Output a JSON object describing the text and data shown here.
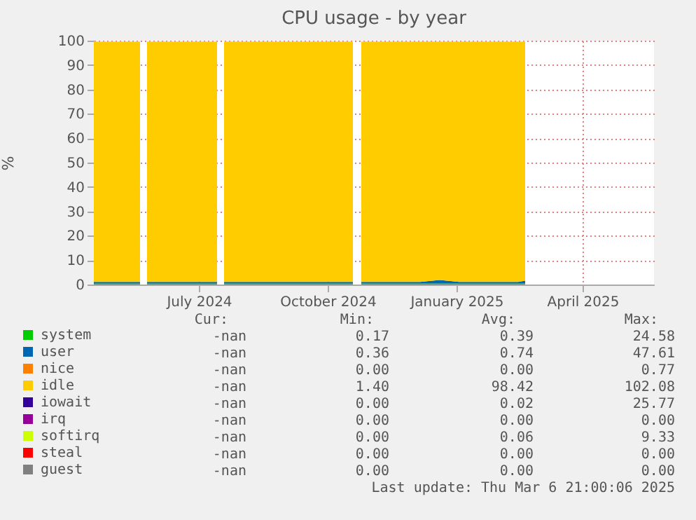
{
  "chart_data": {
    "type": "area",
    "stacked": true,
    "title": "CPU usage - by year",
    "ylabel": "%",
    "x": [
      "2024-05-02",
      "2024-05-16",
      "2024-05-30",
      "2024-06-04",
      "2024-06-06",
      "2024-06-09",
      "2024-06-23",
      "2024-07-07",
      "2024-07-21",
      "2024-07-29",
      "2024-07-31",
      "2024-08-03",
      "2024-08-17",
      "2024-08-31",
      "2024-09-14",
      "2024-09-28",
      "2024-10-12",
      "2024-10-26",
      "2024-11-03",
      "2024-11-06",
      "2024-11-09",
      "2024-11-23",
      "2024-12-07",
      "2024-12-21",
      "2025-01-04",
      "2025-01-18",
      "2025-02-01",
      "2025-02-15",
      "2025-03-01",
      "2025-03-06"
    ],
    "series": [
      {
        "name": "system",
        "color": "#00cc00",
        "values": [
          0.4,
          0.4,
          0.4,
          0.4,
          null,
          0.4,
          0.4,
          0.4,
          0.4,
          0.4,
          null,
          0.4,
          0.4,
          0.4,
          0.4,
          0.4,
          0.4,
          0.4,
          0.4,
          null,
          0.4,
          0.4,
          0.4,
          0.4,
          0.4,
          0.4,
          0.4,
          0.4,
          0.4,
          0.4
        ]
      },
      {
        "name": "user",
        "color": "#0066b3",
        "values": [
          0.7,
          0.7,
          0.7,
          0.7,
          null,
          0.7,
          0.7,
          0.7,
          0.7,
          0.7,
          null,
          0.7,
          0.7,
          0.7,
          0.7,
          0.7,
          0.7,
          0.7,
          0.7,
          null,
          0.7,
          0.7,
          0.7,
          0.7,
          1.5,
          0.7,
          0.7,
          0.7,
          0.7,
          1.2
        ]
      },
      {
        "name": "nice",
        "color": "#ff8000",
        "values": [
          null,
          null,
          null,
          null,
          null,
          null,
          null,
          null,
          null,
          null,
          null,
          null,
          null,
          null,
          null,
          null,
          null,
          null,
          null,
          null,
          null,
          null,
          null,
          null,
          null,
          null,
          null,
          null,
          null,
          null
        ]
      },
      {
        "name": "idle",
        "color": "#ffcc00",
        "values": [
          98.5,
          98.5,
          98.5,
          98.5,
          null,
          98.5,
          98.5,
          98.5,
          98.5,
          98.5,
          null,
          98.5,
          98.5,
          98.5,
          98.5,
          98.5,
          98.5,
          98.5,
          98.5,
          null,
          98.5,
          98.5,
          98.5,
          98.5,
          97.7,
          98.5,
          98.5,
          98.5,
          98.5,
          98.0
        ]
      },
      {
        "name": "iowait",
        "color": "#330099",
        "values": [
          null,
          null,
          null,
          null,
          null,
          null,
          null,
          null,
          null,
          null,
          null,
          null,
          null,
          null,
          null,
          null,
          null,
          null,
          null,
          null,
          null,
          null,
          null,
          null,
          null,
          null,
          null,
          null,
          null,
          null
        ]
      },
      {
        "name": "irq",
        "color": "#990099",
        "values": [
          null,
          null,
          null,
          null,
          null,
          null,
          null,
          null,
          null,
          null,
          null,
          null,
          null,
          null,
          null,
          null,
          null,
          null,
          null,
          null,
          null,
          null,
          null,
          null,
          null,
          null,
          null,
          null,
          null,
          null
        ]
      },
      {
        "name": "softirq",
        "color": "#ccff00",
        "values": [
          0.1,
          0.1,
          0.1,
          0.1,
          null,
          0.1,
          0.1,
          0.1,
          0.1,
          0.1,
          null,
          0.1,
          0.1,
          0.1,
          0.1,
          0.1,
          0.1,
          0.1,
          0.1,
          null,
          0.1,
          0.1,
          0.1,
          0.1,
          0.1,
          0.1,
          0.1,
          0.1,
          0.1,
          0.1
        ]
      },
      {
        "name": "steal",
        "color": "#ff0000",
        "values": [
          null,
          null,
          null,
          null,
          null,
          null,
          null,
          null,
          null,
          null,
          null,
          null,
          null,
          null,
          null,
          null,
          null,
          null,
          null,
          null,
          null,
          null,
          null,
          null,
          null,
          null,
          null,
          null,
          null,
          null
        ]
      },
      {
        "name": "guest",
        "color": "#808080",
        "values": [
          null,
          null,
          null,
          null,
          null,
          null,
          null,
          null,
          null,
          null,
          null,
          null,
          null,
          null,
          null,
          null,
          null,
          null,
          null,
          null,
          null,
          null,
          null,
          null,
          null,
          null,
          null,
          null,
          null,
          null
        ]
      }
    ],
    "xlim": [
      "2024-05-02",
      "2025-06-06"
    ],
    "xticks": [
      {
        "value": "2024-07-16",
        "label": "July 2024"
      },
      {
        "value": "2024-10-16",
        "label": "October 2024"
      },
      {
        "value": "2025-01-16",
        "label": "January 2025"
      },
      {
        "value": "2025-04-16",
        "label": "April 2025"
      }
    ],
    "ylim": [
      0,
      100
    ],
    "yticks": [
      0,
      10,
      20,
      30,
      40,
      50,
      60,
      70,
      80,
      90,
      100
    ],
    "grid": true,
    "legend": "bottom",
    "annotations": [
      "Cur:",
      "Min:",
      "Avg:",
      "Max:",
      "-nan",
      "0.17",
      "0.39",
      "24.58",
      "-nan",
      "0.36",
      "0.74",
      "47.61",
      "-nan",
      "0.00",
      "0.00",
      "0.77",
      "-nan",
      "1.40",
      "98.42",
      "102.08",
      "-nan",
      "0.00",
      "0.02",
      "25.77",
      "-nan",
      "0.00",
      "0.00",
      "0.00",
      "-nan",
      "0.00",
      "0.06",
      "9.33",
      "-nan",
      "0.00",
      "0.00",
      "0.00",
      "-nan",
      "0.00",
      "0.00",
      "0.00",
      "Last update: Thu Mar  6 21:00:06 2025"
    ]
  }
}
